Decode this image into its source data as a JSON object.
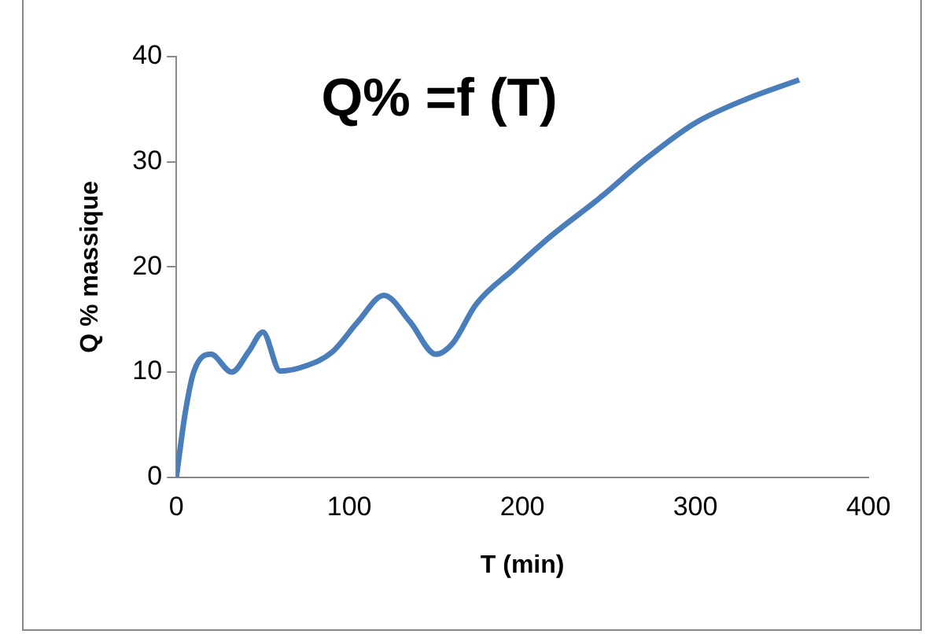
{
  "chart_data": {
    "type": "line",
    "title": "Q% =f (T)",
    "xlabel": "T (min)",
    "ylabel": "Q % massique",
    "series": [
      {
        "color": "#4a7ebb",
        "x": [
          0,
          5,
          10,
          20,
          32,
          42,
          50,
          60,
          75,
          90,
          105,
          120,
          135,
          150,
          160,
          173,
          195,
          217,
          245,
          270,
          300,
          330,
          360
        ],
        "values": [
          0,
          6,
          10,
          11.7,
          10,
          12,
          13.8,
          10.1,
          10.6,
          11.9,
          14.8,
          17.3,
          14.8,
          11.7,
          12.8,
          16.4,
          19.8,
          23,
          26.6,
          30.1,
          33.7,
          36,
          37.8
        ]
      }
    ],
    "xlim": [
      0,
      400
    ],
    "xticks": [
      0,
      100,
      200,
      300,
      400
    ],
    "ylim": [
      0,
      40
    ],
    "yticks": [
      0,
      10,
      20,
      30,
      40
    ],
    "grid": false,
    "legend": false,
    "marker": "none",
    "line_style": "solid"
  }
}
